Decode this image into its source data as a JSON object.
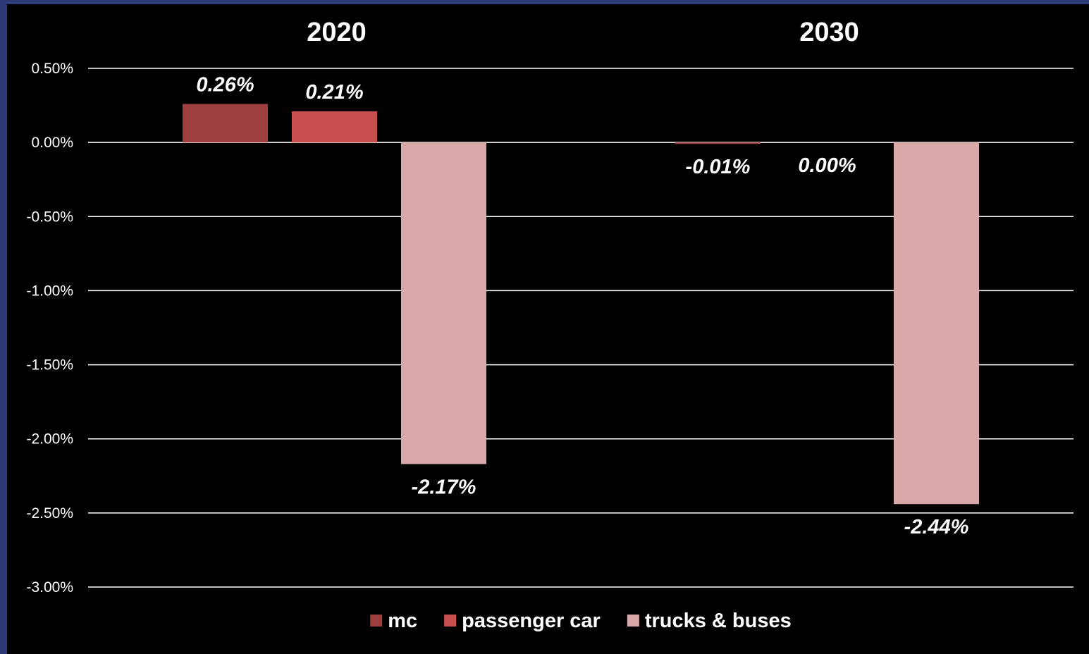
{
  "chart_data": {
    "type": "bar",
    "categories": [
      "2020",
      "2030"
    ],
    "series": [
      {
        "name": "mc",
        "values": [
          0.26,
          -0.01
        ],
        "labels": [
          "0.26%",
          "-0.01%"
        ],
        "color": "#9e3f3f"
      },
      {
        "name": "passenger car",
        "values": [
          0.21,
          0.0
        ],
        "labels": [
          "0.21%",
          "0.00%"
        ],
        "color": "#c9504f"
      },
      {
        "name": "trucks & buses",
        "values": [
          -2.17,
          -2.44
        ],
        "labels": [
          "-2.17%",
          "-2.44%"
        ],
        "color": "#d9a9a9"
      }
    ],
    "ylim": [
      -3.0,
      0.5
    ],
    "yticks": [
      0.5,
      0.0,
      -0.5,
      -1.0,
      -1.5,
      -2.0,
      -2.5,
      -3.0
    ],
    "ytick_labels": [
      "0.50%",
      "0.00%",
      "-0.50%",
      "-1.00%",
      "-1.50%",
      "-2.00%",
      "-2.50%",
      "-3.00%"
    ],
    "xlabel": "",
    "ylabel": "",
    "title": "",
    "grid": true,
    "legend_position": "bottom",
    "background": "#000000",
    "text_color": "#ffffff"
  }
}
